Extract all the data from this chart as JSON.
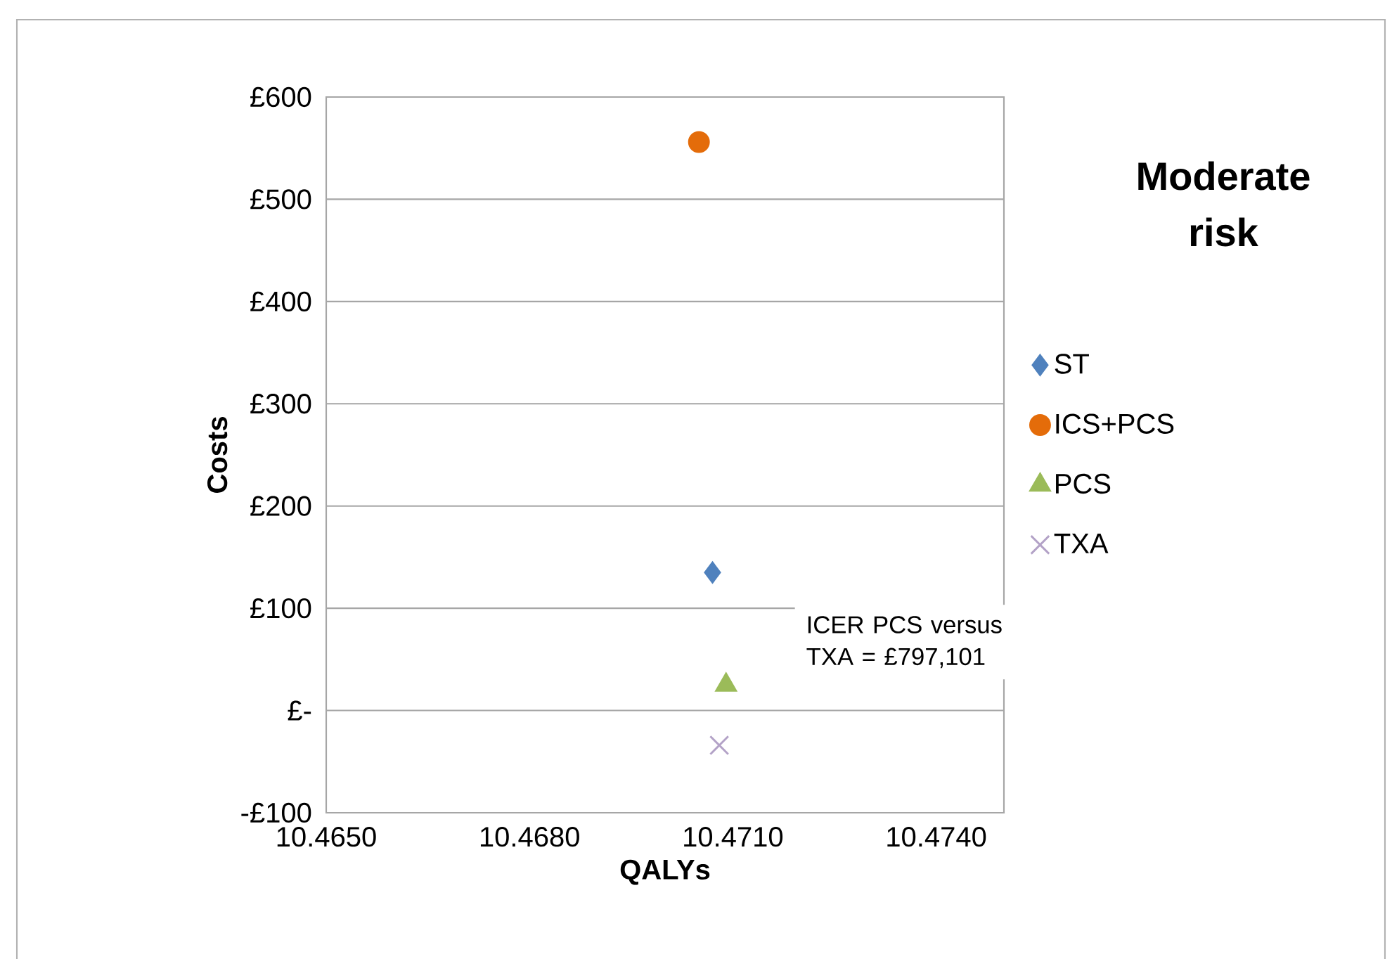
{
  "chart_data": {
    "type": "scatter",
    "title": "Moderate risk",
    "xlabel": "QALYs",
    "ylabel": "Costs",
    "xlim": [
      10.465,
      10.475
    ],
    "xticks": [
      {
        "value": 10.465,
        "label": "10.4650"
      },
      {
        "value": 10.468,
        "label": "10.4680"
      },
      {
        "value": 10.471,
        "label": "10.4710"
      },
      {
        "value": 10.474,
        "label": "10.4740"
      }
    ],
    "ylim": [
      -100,
      600
    ],
    "yticks": [
      {
        "value": -100,
        "label": "-£100"
      },
      {
        "value": 0,
        "label": "£-"
      },
      {
        "value": 100,
        "label": "£100"
      },
      {
        "value": 200,
        "label": "£200"
      },
      {
        "value": 300,
        "label": "£300"
      },
      {
        "value": 400,
        "label": "£400"
      },
      {
        "value": 500,
        "label": "£500"
      },
      {
        "value": 600,
        "label": "£600"
      }
    ],
    "grid": "y",
    "legend": "right",
    "series": [
      {
        "name": "ST",
        "color": "#4f81bd",
        "marker": "diamond",
        "x": [
          10.4707
        ],
        "values": [
          135
        ]
      },
      {
        "name": "ICS+PCS",
        "color": "#e46c0a",
        "marker": "circle",
        "x": [
          10.4705
        ],
        "values": [
          556
        ]
      },
      {
        "name": "PCS",
        "color": "#9bbb59",
        "marker": "triangle",
        "x": [
          10.4709
        ],
        "values": [
          25
        ]
      },
      {
        "name": "TXA",
        "color": "#b3a2c7",
        "marker": "cross",
        "x": [
          10.4708
        ],
        "values": [
          -34
        ]
      }
    ],
    "annotations": [
      "ICER PCS versus TXA = £797,101"
    ]
  }
}
